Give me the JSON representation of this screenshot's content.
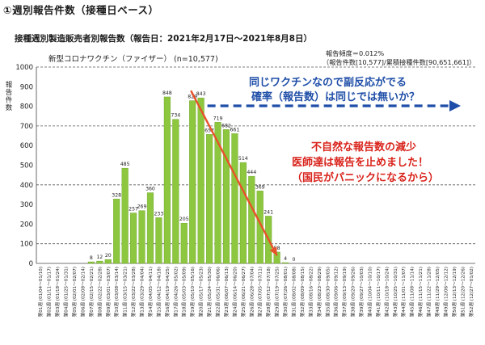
{
  "header": {
    "section_title": "①週別報告件数（接種日ベース）",
    "subtitle": "接種週別製造販売者別報告数（報告日：2021年2月17日〜2021年8月8日）"
  },
  "chart_data": {
    "type": "bar",
    "title": "新型コロナワクチン（ファイザー） (n=10,577)",
    "ylabel": "報告件数",
    "ylim": [
      0,
      1000
    ],
    "yticks": [
      0,
      100,
      200,
      300,
      400,
      500,
      600,
      700,
      800,
      900,
      1000
    ],
    "bar_color": "#8dc63f",
    "info_box": [
      "報告頻度＝0.012%",
      "（報告件数[10,577]/累積接種件数[90,651,661]）"
    ],
    "categories": [
      "第01週 (01/04～01/10)",
      "第02週 (01/11～01/17)",
      "第03週 (01/18～01/24)",
      "第04週 (01/25～01/31)",
      "第05週 (02/01～02/07)",
      "第06週 (02/08～02/14)",
      "第07週 (02/15～02/21)",
      "第08週 (02/22～02/28)",
      "第09週 (03/01～03/07)",
      "第10週 (03/08～03/14)",
      "第11週 (03/15～03/21)",
      "第12週 (03/22～03/28)",
      "第13週 (03/29～04/04)",
      "第14週 (04/05～04/11)",
      "第15週 (04/12～04/18)",
      "第16週 (04/19～04/25)",
      "第17週 (04/26～05/02)",
      "第18週 (05/03～05/09)",
      "第19週 (05/10～05/16)",
      "第20週 (05/17～05/23)",
      "第21週 (05/24～05/30)",
      "第22週 (05/31～06/06)",
      "第23週 (06/07～06/13)",
      "第24週 (06/14～06/20)",
      "第25週 (06/21～06/27)",
      "第26週 (06/28～07/04)",
      "第27週 (07/05～07/11)",
      "第28週 (07/12～07/18)",
      "第29週 (07/19～07/25)",
      "第30週 (07/26～08/01)",
      "第31週 (08/02～08/08)",
      "第32週 (08/09～08/15)",
      "第33週 (08/16～08/22)",
      "第34週 (08/23～08/29)",
      "第35週 (08/30～09/05)",
      "第36週 (09/06～09/12)",
      "第37週 (09/13～09/19)",
      "第38週 (09/20～09/26)",
      "第39週 (09/27～10/03)",
      "第40週 (10/04～10/10)",
      "第41週 (10/11～10/17)",
      "第42週 (10/18～10/24)",
      "第43週 (10/25～10/31)",
      "第44週 (11/01～11/07)",
      "第45週 (11/08～11/14)",
      "第46週 (11/15～11/21)",
      "第47週 (11/22～11/28)",
      "第48週 (11/29～12/05)",
      "第49週 (12/06～12/12)",
      "第50週 (12/13～12/19)",
      "第51週 (12/20～12/26)",
      "第52週 (12/27～01/02)"
    ],
    "values": [
      null,
      null,
      null,
      null,
      null,
      null,
      8,
      12,
      20,
      328,
      485,
      257,
      269,
      360,
      233,
      848,
      734,
      205,
      829,
      843,
      657,
      719,
      682,
      661,
      514,
      444,
      369,
      241,
      58,
      4,
      0,
      null,
      null,
      null,
      null,
      null,
      null,
      null,
      null,
      null,
      null,
      null,
      null,
      null,
      null,
      null,
      null,
      null,
      null,
      null,
      null,
      null
    ],
    "labels": [
      "",
      "",
      "",
      "",
      "",
      "",
      "8",
      "12",
      "20",
      "328",
      "485",
      "257",
      "269",
      "360",
      "233",
      "848",
      "734",
      "205",
      "829",
      "843",
      "657",
      "719",
      "682",
      "661",
      "514",
      "444",
      "369",
      "241",
      "58",
      "4",
      "0",
      "",
      "",
      "",
      "",
      "",
      "",
      "",
      "",
      "",
      "",
      "",
      "",
      "",
      "",
      "",
      "",
      "",
      "",
      "",
      "",
      ""
    ],
    "annotations": {
      "blue_text": [
        "同じワクチンなので副反応がでる",
        "確率（報告数）は同じでは無いか？"
      ],
      "red_text": [
        "不自然な報告数の減少",
        "医師達は報告を止めました！",
        "（国民がパニックになるから）"
      ],
      "blue_color": "#1f4ea8",
      "red_color": "#d9231b",
      "arrow_color": "#e8512a"
    }
  }
}
